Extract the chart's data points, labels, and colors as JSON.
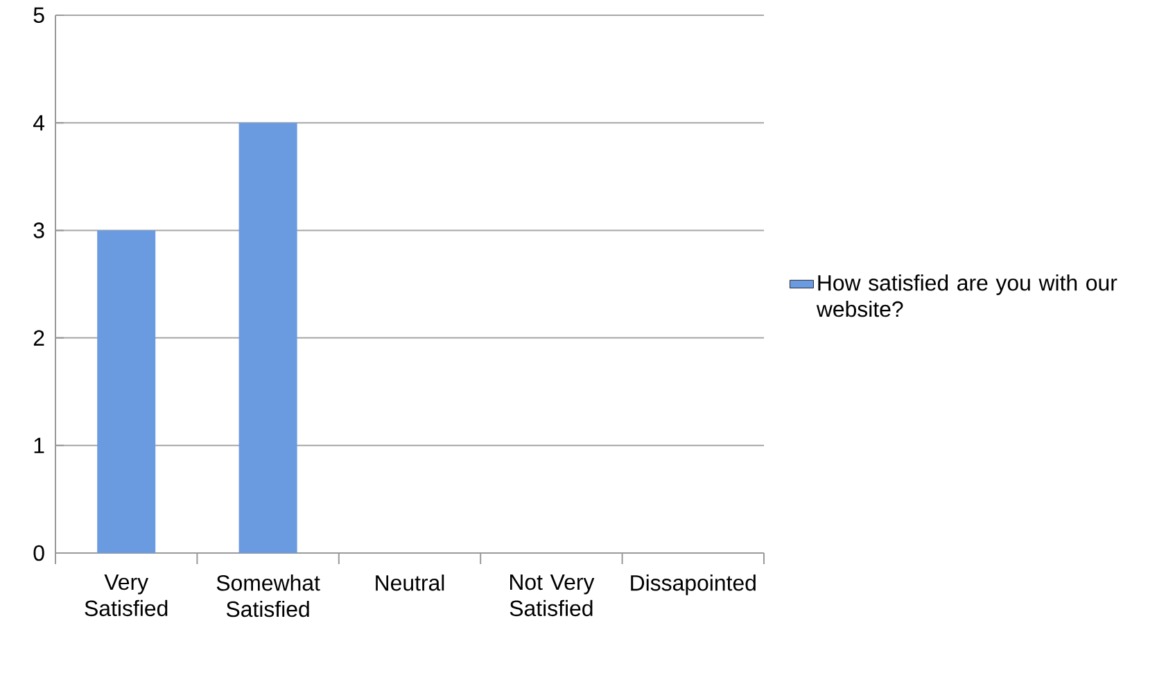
{
  "chart_data": {
    "type": "bar",
    "categories": [
      "Very Satisfied",
      "Somewhat Satisfied",
      "Neutral",
      "Not Very Satisfied",
      "Dissapointed"
    ],
    "series": [
      {
        "name": "How satisfied are you with our website?",
        "color": "#6a9be0",
        "values": [
          3,
          4,
          0,
          0,
          0
        ]
      }
    ],
    "ylim": [
      0,
      5
    ],
    "yticks": [
      0,
      1,
      2,
      3,
      4,
      5
    ],
    "grid": "y",
    "legend": "right"
  }
}
